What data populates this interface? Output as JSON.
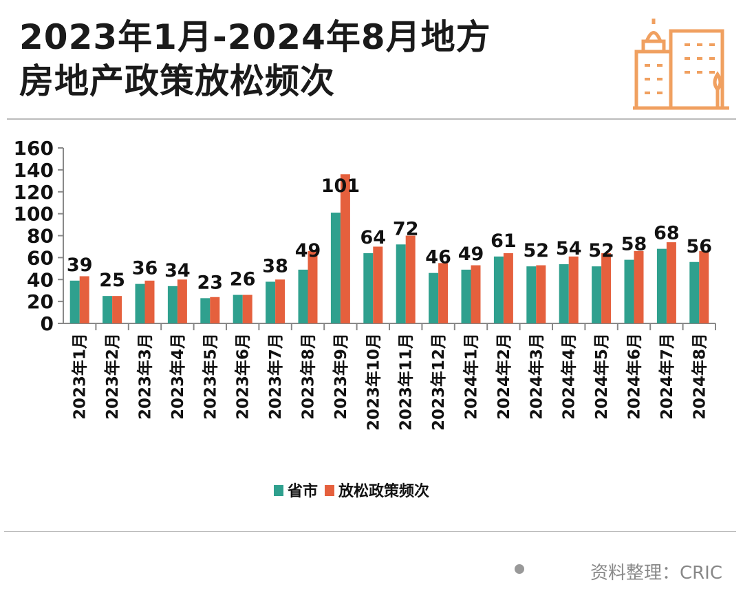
{
  "title_line1": "2023年1月-2024年8月地方",
  "title_line2": "房地产政策放松频次",
  "source": "资料整理：CRIC",
  "logo_icon": "city-buildings-icon",
  "colors": {
    "province_city": "#2fa08e",
    "policy": "#e5603d"
  },
  "chart_data": {
    "type": "bar",
    "title": "2023年1月-2024年8月地方房地产政策放松频次",
    "categories": [
      "2023年1月",
      "2023年2月",
      "2023年3月",
      "2023年4月",
      "2023年5月",
      "2023年6月",
      "2023年7月",
      "2023年8月",
      "2023年9月",
      "2023年10月",
      "2023年11月",
      "2023年12月",
      "2024年1月",
      "2024年2月",
      "2024年3月",
      "2024年4月",
      "2024年5月",
      "2024年6月",
      "2024年7月",
      "2024年8月"
    ],
    "series": [
      {
        "name": "省市",
        "values": [
          39,
          25,
          36,
          34,
          23,
          26,
          38,
          49,
          101,
          64,
          72,
          46,
          49,
          61,
          52,
          54,
          52,
          58,
          68,
          56
        ],
        "labeled": true
      },
      {
        "name": "放松政策频次",
        "values": [
          43,
          25,
          39,
          40,
          24,
          26,
          40,
          66,
          136,
          70,
          80,
          55,
          53,
          64,
          53,
          61,
          64,
          66,
          74,
          66
        ]
      }
    ],
    "ylim": [
      0,
      160
    ],
    "yticks": [
      0,
      20,
      40,
      60,
      80,
      100,
      120,
      140,
      160
    ],
    "grid": false,
    "legend": "bottom"
  }
}
